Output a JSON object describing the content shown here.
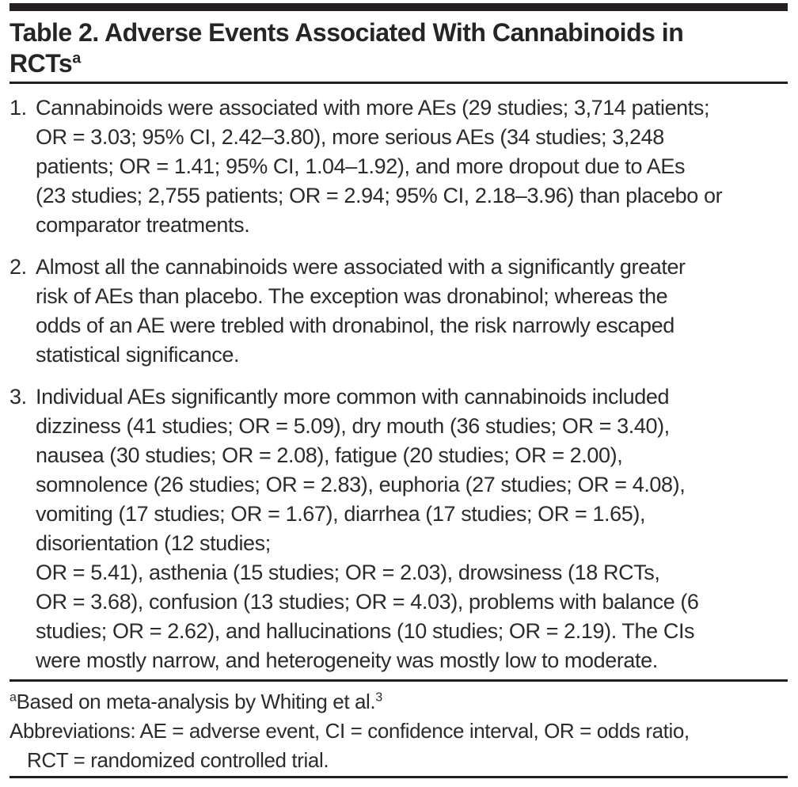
{
  "colors": {
    "rule": "#231f20",
    "text": "#2d2b29",
    "background": "#ffffff"
  },
  "title": {
    "line1": "Table 2. Adverse Events Associated With Cannabinoids in",
    "line2": "RCTs",
    "superscript": "a"
  },
  "items": [
    {
      "number": "1.",
      "text": "Cannabinoids were associated with more AEs (29 studies; 3,714 patients;\nOR = 3.03; 95% CI, 2.42–3.80), more serious AEs (34 studies; 3,248\npatients; OR = 1.41; 95% CI, 1.04–1.92), and more dropout due to AEs\n(23 studies; 2,755 patients; OR = 2.94; 95% CI, 2.18–3.96) than placebo or\ncomparator treatments."
    },
    {
      "number": "2.",
      "text": "Almost all the cannabinoids were associated with a significantly greater\nrisk of AEs than placebo. The exception was dronabinol; whereas the\nodds of an AE were trebled with dronabinol, the risk narrowly escaped\nstatistical significance."
    },
    {
      "number": "3.",
      "text": "Individual AEs significantly more common with cannabinoids included\ndizziness (41 studies; OR = 5.09), dry mouth (36 studies; OR = 3.40),\nnausea (30 studies; OR = 2.08), fatigue (20 studies; OR = 2.00),\nsomnolence (26 studies; OR = 2.83), euphoria (27 studies; OR = 4.08),\nvomiting (17 studies; OR = 1.67), diarrhea (17 studies; OR = 1.65),\ndisorientation (12 studies;\nOR = 5.41), asthenia (15 studies; OR = 2.03), drowsiness (18 RCTs,\nOR = 3.68), confusion (13 studies; OR = 4.03), problems with balance (6\nstudies; OR = 2.62), and hallucinations (10 studies; OR = 2.19). The CIs\nwere mostly narrow, and heterogeneity was mostly low to moderate."
    }
  ],
  "footnotes": {
    "a": {
      "marker": "a",
      "text": "Based on meta-analysis by Whiting et al.",
      "ref": "3"
    },
    "abbreviations": "Abbreviations: AE = adverse event, CI = confidence interval, OR = odds ratio,\nRCT = randomized controlled trial."
  }
}
